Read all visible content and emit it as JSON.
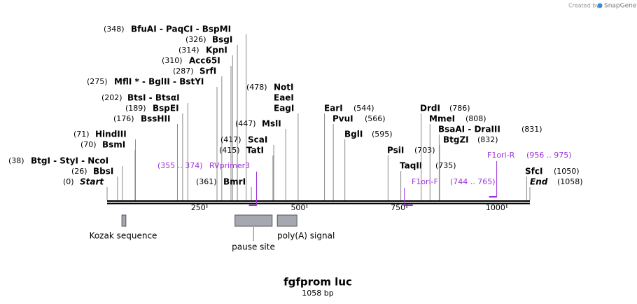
{
  "header": {
    "credit": "Created by",
    "brand": "SnapGene"
  },
  "map": {
    "title": "fgfprom luc",
    "subtitle": "1058 bp",
    "ruler_ticks": [
      250,
      500,
      750,
      1000
    ],
    "sites": [
      {
        "position": {
          "value": 0,
          "label": "(0)"
        },
        "names": [
          "Start"
        ]
      },
      {
        "position": {
          "value": 26,
          "label": "(26)"
        },
        "names": [
          "BbsI"
        ]
      },
      {
        "position": {
          "value": 38,
          "label": "(38)"
        },
        "names": [
          "BtgI  -  StyI  -  NcoI"
        ]
      },
      {
        "position": {
          "value": 70,
          "label": "(70)"
        },
        "names": [
          "BsmI"
        ]
      },
      {
        "position": {
          "value": 71,
          "label": "(71)"
        },
        "names": [
          "HindIII"
        ]
      },
      {
        "position": {
          "value": 176,
          "label": "(176)"
        },
        "names": [
          "BssHII"
        ]
      },
      {
        "position": {
          "value": 189,
          "label": "(189)"
        },
        "names": [
          "BspEI"
        ]
      },
      {
        "position": {
          "value": 202,
          "label": "(202)"
        },
        "names": [
          "BtsI  -  BtsαI"
        ]
      },
      {
        "position": {
          "value": 275,
          "label": "(275)"
        },
        "names": [
          "MflI *  -  BglII  -  BstYI"
        ]
      },
      {
        "position": {
          "value": 287,
          "label": "(287)"
        },
        "names": [
          "SrfI"
        ]
      },
      {
        "position": {
          "value": 310,
          "label": "(310)"
        },
        "names": [
          "Acc65I"
        ]
      },
      {
        "position": {
          "value": 314,
          "label": "(314)"
        },
        "names": [
          "KpnI"
        ]
      },
      {
        "position": {
          "value": 326,
          "label": "(326)"
        },
        "names": [
          "BsgI"
        ]
      },
      {
        "position": {
          "value": 348,
          "label": "(348)"
        },
        "names": [
          "BfuAI  -  PaqCI  -  BspMI"
        ]
      },
      {
        "position": {
          "value": 361,
          "label": "(361)"
        },
        "names": [
          "BmrI"
        ]
      },
      {
        "position": {
          "value": 415,
          "label": "(415)"
        },
        "names": [
          "TatI"
        ]
      },
      {
        "position": {
          "value": 417,
          "label": "(417)"
        },
        "names": [
          "ScaI"
        ]
      },
      {
        "position": {
          "value": 447,
          "label": "(447)"
        },
        "names": [
          "MslI"
        ]
      },
      {
        "position": {
          "value": 478,
          "label": "(478)"
        },
        "names": [
          "NotI",
          "EaeI",
          "EagI"
        ]
      },
      {
        "position": {
          "value": 544,
          "label": "(544)"
        },
        "names": [
          "EarI"
        ]
      },
      {
        "position": {
          "value": 566,
          "label": "(566)"
        },
        "names": [
          "PvuI"
        ]
      },
      {
        "position": {
          "value": 595,
          "label": "(595)"
        },
        "names": [
          "BglI"
        ]
      },
      {
        "position": {
          "value": 703,
          "label": "(703)"
        },
        "names": [
          "PsiI"
        ]
      },
      {
        "position": {
          "value": 735,
          "label": "(735)"
        },
        "names": [
          "TaqII"
        ]
      },
      {
        "position": {
          "value": 786,
          "label": "(786)"
        },
        "names": [
          "DrdI"
        ]
      },
      {
        "position": {
          "value": 808,
          "label": "(808)"
        },
        "names": [
          "MmeI"
        ]
      },
      {
        "position": {
          "value": 831,
          "label": "(831)"
        },
        "names": [
          "BsaAI  -  DraIII"
        ]
      },
      {
        "position": {
          "value": 832,
          "label": "(832)"
        },
        "names": [
          "BtgZI"
        ]
      },
      {
        "position": {
          "value": 1050,
          "label": "(1050)"
        },
        "names": [
          "SfcI"
        ]
      },
      {
        "position": {
          "value": 1058,
          "label": "(1058)"
        },
        "names": [
          "End"
        ]
      }
    ],
    "primers": [
      {
        "name": "RVprimer3",
        "range_label": "(355 .. 374)",
        "start": 355,
        "end": 374,
        "direction": "reverse"
      },
      {
        "name": "F1ori-F",
        "range_label": "(744 .. 765)",
        "start": 744,
        "end": 765,
        "direction": "forward"
      },
      {
        "name": "F1ori-R",
        "range_label": "(956 .. 975)",
        "start": 956,
        "end": 975,
        "direction": "reverse"
      }
    ],
    "features": [
      {
        "name": "Kozak sequence",
        "start": 37,
        "end": 47
      },
      {
        "name": "pause site",
        "start": 320,
        "end": 413
      },
      {
        "name": "poly(A) signal",
        "start": 426,
        "end": 475
      }
    ]
  }
}
